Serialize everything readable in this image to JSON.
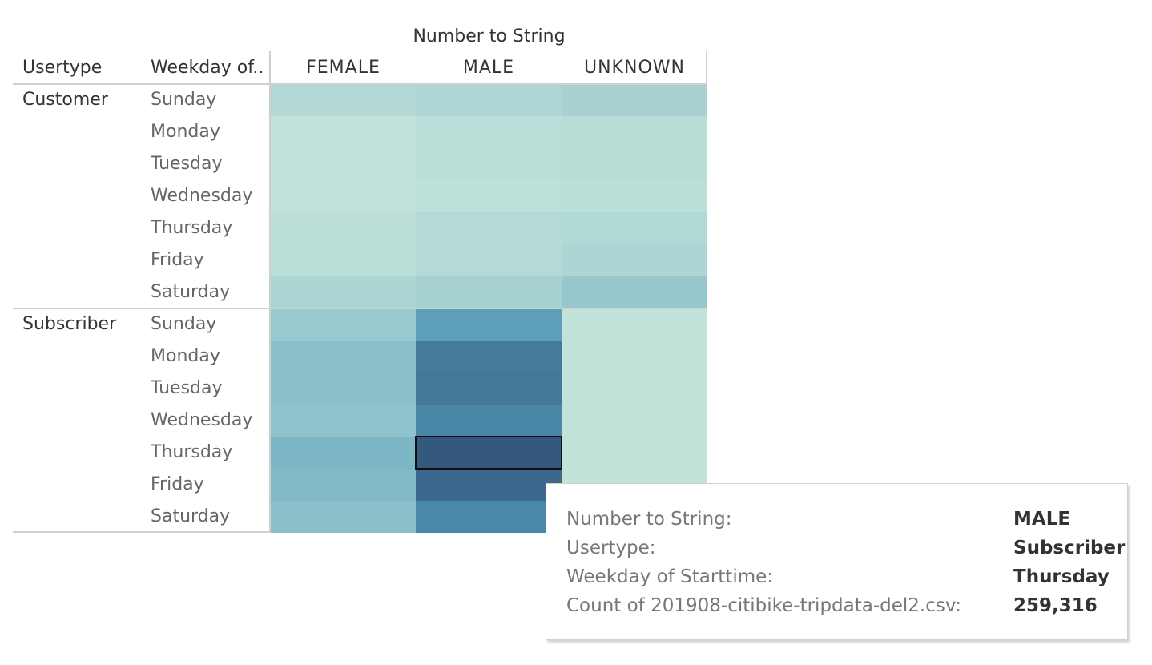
{
  "header": {
    "column_group_title": "Number to String",
    "usertype_label": "Usertype",
    "weekday_label": "Weekday of.."
  },
  "chart_data": {
    "type": "heatmap",
    "columns": [
      "FEMALE",
      "MALE",
      "UNKNOWN"
    ],
    "column_field": "Number to String",
    "row_fields": [
      "Usertype",
      "Weekday of.."
    ],
    "groups": [
      {
        "name": "Customer",
        "rows": [
          "Sunday",
          "Monday",
          "Tuesday",
          "Wednesday",
          "Thursday",
          "Friday",
          "Saturday"
        ],
        "colors": [
          [
            "#b2d9d5",
            "#add6d5",
            "#a8d2d2"
          ],
          [
            "#c0e2da",
            "#bbdfd8",
            "#b8ddd6"
          ],
          [
            "#c0e2da",
            "#bbdfd8",
            "#b8ddd6"
          ],
          [
            "#c0e2da",
            "#bde0d9",
            "#bbdfd8"
          ],
          [
            "#bbdfd8",
            "#b4dad6",
            "#b1d9d5"
          ],
          [
            "#bbdfd8",
            "#b4dad6",
            "#acd5d3"
          ],
          [
            "#acd5d3",
            "#a5d1d1",
            "#97c7cc"
          ]
        ]
      },
      {
        "name": "Subscriber",
        "rows": [
          "Sunday",
          "Monday",
          "Tuesday",
          "Wednesday",
          "Thursday",
          "Friday",
          "Saturday"
        ],
        "colors": [
          [
            "#9ac9cf",
            "#5e9fb9",
            "#c2e3da"
          ],
          [
            "#8bbfca",
            "#457a9b",
            "#c2e3da"
          ],
          [
            "#8bbfca",
            "#437899",
            "#c2e3da"
          ],
          [
            "#90c3cc",
            "#4a87a7",
            "#c2e3da"
          ],
          [
            "#7db7c6",
            "#35587f",
            "#c2e3da"
          ],
          [
            "#82bac7",
            "#3c6890",
            "#c2e3da"
          ],
          [
            "#8bbfca",
            "#4a88a9",
            "#c2e3da"
          ]
        ]
      }
    ],
    "selected": {
      "group": 1,
      "row": 4,
      "col": 1
    }
  },
  "tooltip": {
    "rows": [
      {
        "key": "Number to String:",
        "value": "MALE"
      },
      {
        "key": "Usertype:",
        "value": "Subscriber"
      },
      {
        "key": "Weekday of Starttime:",
        "value": "Thursday"
      },
      {
        "key": "Count of 201908-citibike-tripdata-del2.csv:",
        "value": "259,316"
      }
    ]
  }
}
